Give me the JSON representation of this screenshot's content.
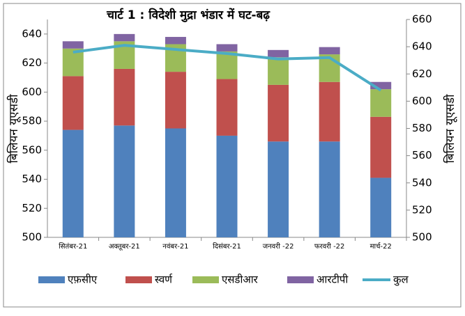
{
  "chart_data": {
    "type": "bar",
    "title": "चार्ट 1 : विदेशी मुद्रा भंडार में घट-बढ़",
    "y_label": "बिलियन यूएसडी",
    "y2_label": "बिलियन यूएसडी",
    "categories": [
      "सितंबर-21",
      "अक्तूबर-21",
      "नवंबर-21",
      "दिसंबर-21",
      "जनवरी -22",
      "फरवरी -22",
      "मार्च-22"
    ],
    "stacked": true,
    "series": [
      {
        "name": "एफ़सीए",
        "color": "#4f81bd",
        "values": [
          574,
          577,
          575,
          570,
          566,
          566,
          541
        ]
      },
      {
        "name": "स्वर्ण",
        "color": "#c0504d",
        "values": [
          37,
          39,
          39,
          39,
          39,
          41,
          42
        ]
      },
      {
        "name": "एसडीआर",
        "color": "#9bbb59",
        "values": [
          19,
          19,
          19,
          19,
          19,
          19,
          19
        ]
      },
      {
        "name": "आरटीपी",
        "color": "#8064a2",
        "values": [
          5,
          5,
          5,
          5,
          5,
          5,
          5
        ]
      },
      {
        "name": "कुल",
        "color": "#4bacc6",
        "type": "line",
        "axis": "y2",
        "values": [
          636,
          641,
          638,
          635,
          631,
          632,
          608
        ]
      }
    ],
    "ylim": [
      500,
      650
    ],
    "yticks": [
      500,
      520,
      540,
      560,
      580,
      600,
      620,
      640
    ],
    "y2lim": [
      500,
      660
    ],
    "y2ticks": [
      500,
      520,
      540,
      560,
      580,
      600,
      620,
      640,
      660
    ],
    "legend": "bottom"
  }
}
